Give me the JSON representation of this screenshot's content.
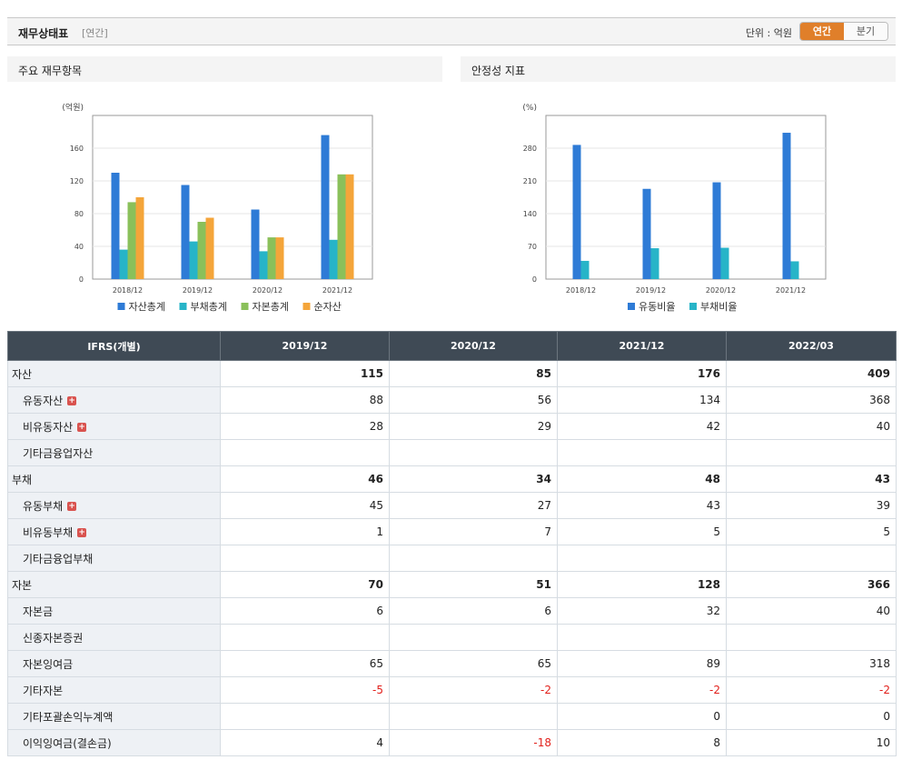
{
  "header": {
    "title": "재무상태표",
    "subtitle": "[연간]",
    "unit": "단위 : 억원",
    "toggle": [
      "연간",
      "분기"
    ]
  },
  "panels": {
    "left_title": "주요 재무항목",
    "right_title": "안정성 지표"
  },
  "chart_data": [
    {
      "type": "bar",
      "categories": [
        "2018/12",
        "2019/12",
        "2020/12",
        "2021/12"
      ],
      "ylabel": "(억원)",
      "ylim": [
        0,
        200
      ],
      "yticks": [
        0,
        40,
        80,
        120,
        160
      ],
      "legend_position": "bottom",
      "grid": true,
      "series": [
        {
          "name": "자산총계",
          "color": "#2e7bd6",
          "values": [
            130,
            115,
            85,
            176
          ]
        },
        {
          "name": "부채총계",
          "color": "#27b4c8",
          "values": [
            36,
            46,
            34,
            48
          ]
        },
        {
          "name": "자본총계",
          "color": "#8ac05a",
          "values": [
            94,
            70,
            51,
            128
          ]
        },
        {
          "name": "순자산",
          "color": "#f4a53a",
          "values": [
            100,
            75,
            51,
            128
          ]
        }
      ]
    },
    {
      "type": "bar",
      "categories": [
        "2018/12",
        "2019/12",
        "2020/12",
        "2021/12"
      ],
      "ylabel": "(%)",
      "ylim": [
        0,
        350
      ],
      "yticks": [
        0,
        70,
        140,
        210,
        280
      ],
      "legend_position": "bottom",
      "grid": true,
      "series": [
        {
          "name": "유동비율",
          "color": "#2e7bd6",
          "values": [
            287,
            193,
            207,
            313
          ]
        },
        {
          "name": "부채비율",
          "color": "#27b4c8",
          "values": [
            39,
            66,
            67,
            38
          ]
        }
      ]
    }
  ],
  "table": {
    "headers": [
      "IFRS(개별)",
      "2019/12",
      "2020/12",
      "2021/12",
      "2022/03"
    ],
    "rows": [
      {
        "label": "자산",
        "major": true,
        "values": [
          "115",
          "85",
          "176",
          "409"
        ]
      },
      {
        "label": "유동자산",
        "plus": true,
        "values": [
          "88",
          "56",
          "134",
          "368"
        ]
      },
      {
        "label": "비유동자산",
        "plus": true,
        "values": [
          "28",
          "29",
          "42",
          "40"
        ]
      },
      {
        "label": "기타금융업자산",
        "values": [
          "",
          "",
          "",
          ""
        ]
      },
      {
        "label": "부채",
        "major": true,
        "values": [
          "46",
          "34",
          "48",
          "43"
        ]
      },
      {
        "label": "유동부채",
        "plus": true,
        "values": [
          "45",
          "27",
          "43",
          "39"
        ]
      },
      {
        "label": "비유동부채",
        "plus": true,
        "values": [
          "1",
          "7",
          "5",
          "5"
        ]
      },
      {
        "label": "기타금융업부채",
        "values": [
          "",
          "",
          "",
          ""
        ]
      },
      {
        "label": "자본",
        "major": true,
        "values": [
          "70",
          "51",
          "128",
          "366"
        ]
      },
      {
        "label": "자본금",
        "values": [
          "6",
          "6",
          "32",
          "40"
        ]
      },
      {
        "label": "신종자본증권",
        "values": [
          "",
          "",
          "",
          ""
        ]
      },
      {
        "label": "자본잉여금",
        "values": [
          "65",
          "65",
          "89",
          "318"
        ]
      },
      {
        "label": "기타자본",
        "values": [
          "-5",
          "-2",
          "-2",
          "-2"
        ]
      },
      {
        "label": "기타포괄손익누계액",
        "values": [
          "",
          "",
          "0",
          "0"
        ]
      },
      {
        "label": "이익잉여금(결손금)",
        "values": [
          "4",
          "-18",
          "8",
          "10"
        ]
      }
    ]
  }
}
